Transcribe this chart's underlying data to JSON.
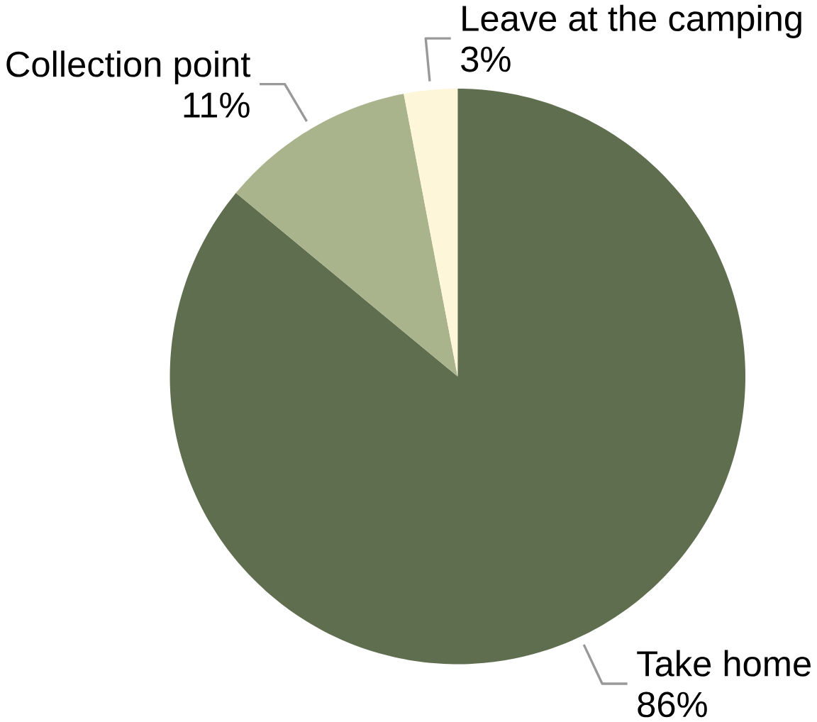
{
  "chart_data": {
    "type": "pie",
    "categories": [
      "Take home",
      "Collection point",
      "Leave at the camping"
    ],
    "values": [
      86,
      11,
      3
    ],
    "colors": [
      "#5f6e4f",
      "#a9b48c",
      "#fdf6d8"
    ],
    "value_labels": [
      "86%",
      "11%",
      "3%"
    ]
  }
}
